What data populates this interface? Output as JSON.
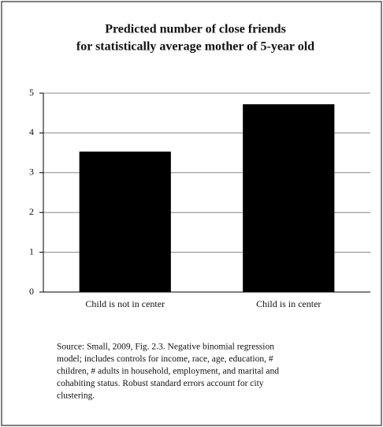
{
  "chart_data": {
    "type": "bar",
    "title": [
      "Predicted number of close friends",
      "for statistically average mother of 5-year old"
    ],
    "categories": [
      "Child is not in center",
      "Child is in center"
    ],
    "values": [
      3.53,
      4.72
    ],
    "color": "#000000",
    "ylim": [
      0,
      5
    ],
    "yticks": [
      0,
      1,
      2,
      3,
      4,
      5
    ],
    "grid": true,
    "note": [
      "Source: Small, 2009, Fig. 2.3.  Negative binomial regression",
      "model; includes controls for income, race, age, education, #",
      "children, # adults in household, employment, and marital and",
      "cohabiting status.  Robust standard errors account for city",
      "clustering."
    ]
  }
}
